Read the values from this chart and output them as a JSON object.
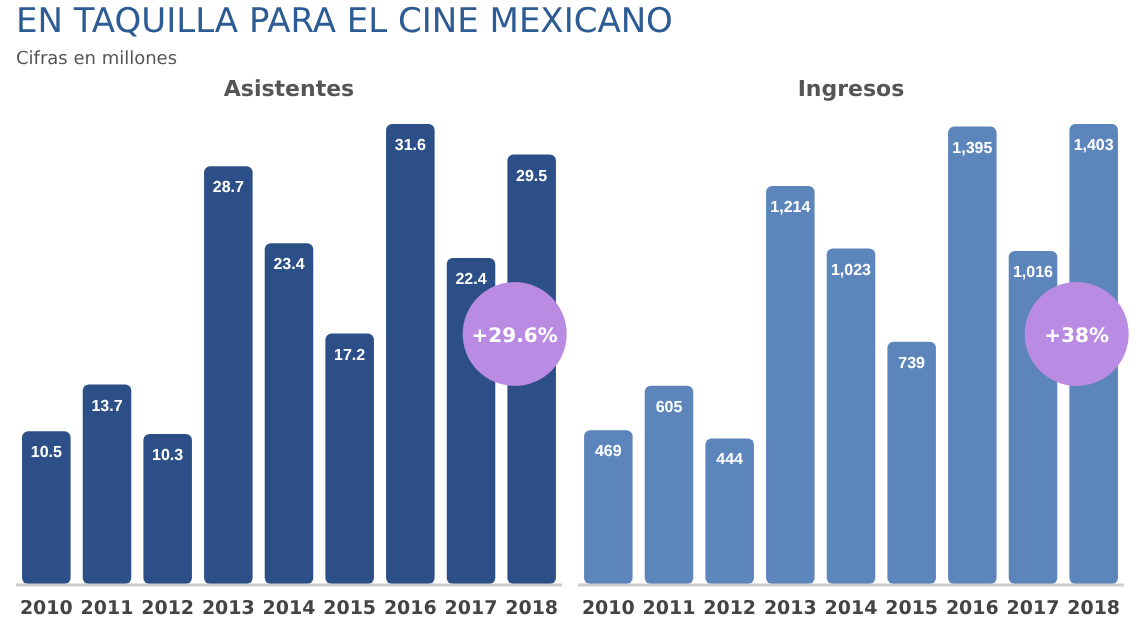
{
  "chart_data": [
    {
      "type": "bar",
      "title": "Asistentes",
      "categories": [
        "2010",
        "2011",
        "2012",
        "2013",
        "2014",
        "2015",
        "2016",
        "2017",
        "2018"
      ],
      "values": [
        10.5,
        13.7,
        10.3,
        28.7,
        23.4,
        17.2,
        31.6,
        22.4,
        29.5
      ],
      "color": "#2b4f86",
      "data_labels": true,
      "annotations": [
        "EN TAQUILLA PARA EL CINE MEXICANO",
        "Cifras en millones",
        "+29.6%"
      ]
    },
    {
      "type": "bar",
      "title": "Ingresos",
      "categories": [
        "2010",
        "2011",
        "2012",
        "2013",
        "2014",
        "2015",
        "2016",
        "2017",
        "2018"
      ],
      "values": [
        469,
        605,
        444,
        1214,
        1023,
        739,
        1395,
        1016,
        1403
      ],
      "color": "#5b85bb",
      "value_labels": [
        "469",
        "605",
        "444",
        "1,214",
        "1,023",
        "739",
        "1,395",
        "1,016",
        "1,403"
      ],
      "annotations": [
        "+38%"
      ]
    }
  ]
}
